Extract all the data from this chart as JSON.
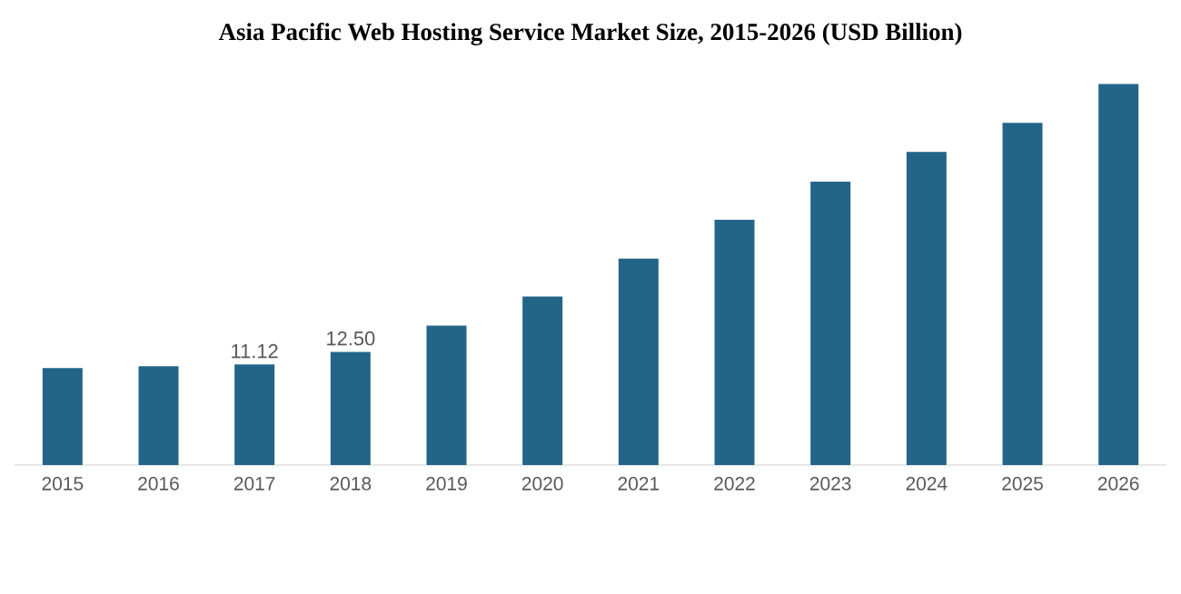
{
  "chart_data": {
    "type": "bar",
    "title": "Asia Pacific Web Hosting Service Market Size, 2015-2026 (USD Billion)",
    "categories": [
      "2015",
      "2016",
      "2017",
      "2018",
      "2019",
      "2020",
      "2021",
      "2022",
      "2023",
      "2024",
      "2025",
      "2026"
    ],
    "values": [
      10.7,
      10.9,
      11.12,
      12.5,
      15.4,
      18.6,
      22.8,
      27.1,
      31.3,
      34.6,
      37.8,
      42.1
    ],
    "value_labels": [
      null,
      null,
      "11.12",
      "12.50",
      null,
      null,
      null,
      null,
      null,
      null,
      null,
      null
    ],
    "color": "#236589"
  }
}
